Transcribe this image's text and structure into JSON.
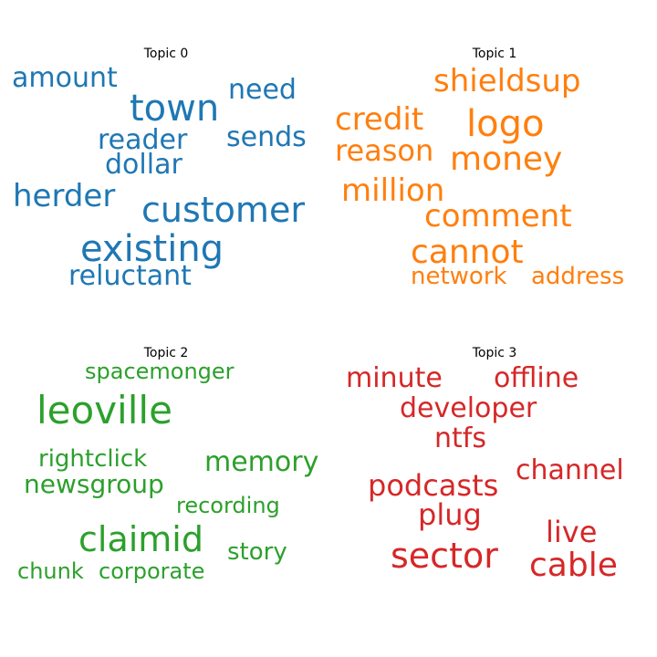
{
  "topics": [
    {
      "title": "Topic 0",
      "color": "#1f77b4",
      "words": [
        "amount",
        "need",
        "town",
        "sends",
        "reader",
        "dollar",
        "herder",
        "customer",
        "existing",
        "reluctant"
      ]
    },
    {
      "title": "Topic 1",
      "color": "#ff7f0e",
      "words": [
        "shieldsup",
        "credit",
        "logo",
        "reason",
        "money",
        "million",
        "comment",
        "cannot",
        "network",
        "address"
      ]
    },
    {
      "title": "Topic 2",
      "color": "#2ca02c",
      "words": [
        "spacemonger",
        "leoville",
        "rightclick",
        "memory",
        "newsgroup",
        "recording",
        "claimid",
        "story",
        "chunk",
        "corporate"
      ]
    },
    {
      "title": "Topic 3",
      "color": "#d62728",
      "words": [
        "minute",
        "offline",
        "developer",
        "ntfs",
        "channel",
        "podcasts",
        "plug",
        "live",
        "sector",
        "cable"
      ]
    }
  ]
}
